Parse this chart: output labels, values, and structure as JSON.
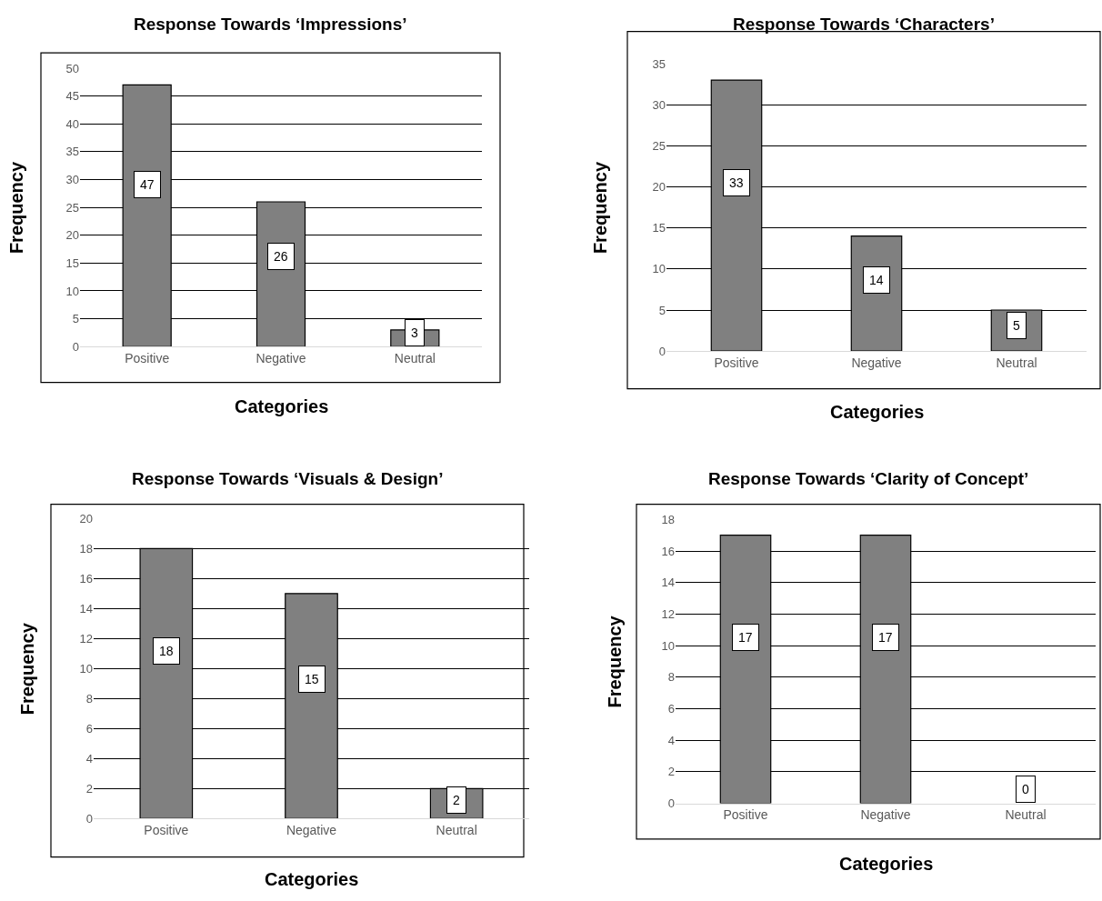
{
  "chart_data": [
    {
      "type": "bar",
      "title": "Response Towards ‘Impressions’",
      "xlabel": "Categories",
      "ylabel": "Frequency",
      "categories": [
        "Positive",
        "Negative",
        "Neutral"
      ],
      "values": [
        47,
        26,
        3
      ],
      "color": "#808080",
      "ylim": [
        0,
        50
      ],
      "yticks": [
        0,
        5,
        10,
        15,
        20,
        25,
        30,
        35,
        40,
        45,
        50
      ],
      "grid": "y",
      "data_labels": true
    },
    {
      "type": "bar",
      "title": "Response Towards ‘Characters’",
      "xlabel": "Categories",
      "ylabel": "Frequency",
      "categories": [
        "Positive",
        "Negative",
        "Neutral"
      ],
      "values": [
        33,
        14,
        5
      ],
      "color": "#808080",
      "ylim": [
        0,
        35
      ],
      "yticks": [
        0,
        5,
        10,
        15,
        20,
        25,
        30,
        35
      ],
      "grid": "y",
      "data_labels": true
    },
    {
      "type": "bar",
      "title": "Response Towards ‘Visuals & Design’",
      "xlabel": "Categories",
      "ylabel": "Frequency",
      "categories": [
        "Positive",
        "Negative",
        "Neutral"
      ],
      "values": [
        18,
        15,
        2
      ],
      "color": "#808080",
      "ylim": [
        0,
        20
      ],
      "yticks": [
        0,
        2,
        4,
        6,
        8,
        10,
        12,
        14,
        16,
        18,
        20
      ],
      "grid": "y",
      "data_labels": true
    },
    {
      "type": "bar",
      "title": "Response Towards ‘Clarity of Concept’",
      "xlabel": "Categories",
      "ylabel": "Frequency",
      "categories": [
        "Positive",
        "Negative",
        "Neutral"
      ],
      "values": [
        17,
        17,
        0
      ],
      "color": "#808080",
      "ylim": [
        0,
        18
      ],
      "yticks": [
        0,
        2,
        4,
        6,
        8,
        10,
        12,
        14,
        16,
        18
      ],
      "grid": "y",
      "data_labels": true
    }
  ]
}
